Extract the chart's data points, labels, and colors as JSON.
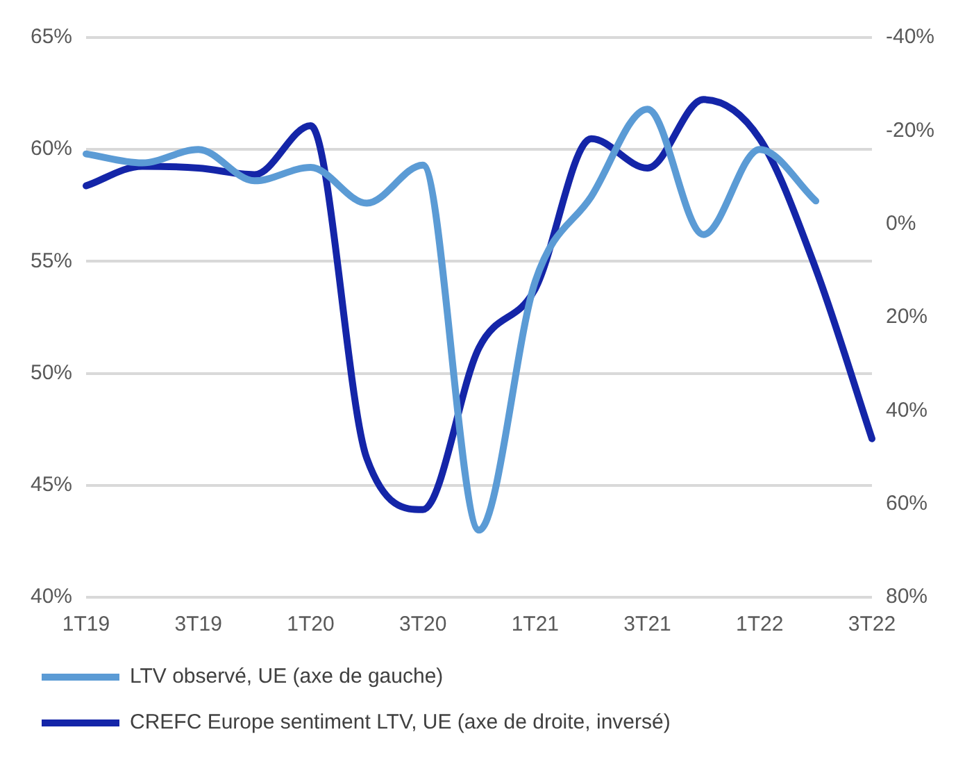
{
  "chart_data": {
    "type": "line",
    "categories": [
      "1T19",
      null,
      "3T19",
      null,
      "1T20",
      null,
      "3T20",
      null,
      "1T21",
      null,
      "3T21",
      null,
      "1T22",
      null,
      "3T22"
    ],
    "series": [
      {
        "name": "LTV observé, UE (axe de gauche)",
        "color": "#5b9bd5",
        "values": [
          59.8,
          59.4,
          60.0,
          58.6,
          59.2,
          57.6,
          59.3,
          43.0,
          54.1,
          57.9,
          61.8,
          56.2,
          60.0,
          57.7,
          null
        ]
      },
      {
        "name": "CREFC Europe sentiment LTV, UE (axe de droite, inversé)",
        "color": "#1425a8",
        "axis": "y2",
        "values": [
          -8.2,
          -12.4,
          -12.0,
          -10.6,
          -21.1,
          50.2,
          61.2,
          26.5,
          13.9,
          -18.3,
          -12.0,
          -26.7,
          -18.3,
          9.6,
          46.0
        ]
      }
    ],
    "ylim": [
      40,
      65
    ],
    "yticks": [
      {
        "value": 40,
        "label": "40%"
      },
      {
        "value": 45,
        "label": "45%"
      },
      {
        "value": 50,
        "label": "50%"
      },
      {
        "value": 55,
        "label": "55%"
      },
      {
        "value": 60,
        "label": "60%"
      },
      {
        "value": 65,
        "label": "65%"
      }
    ],
    "y2lim": [
      80,
      -40
    ],
    "y2ticks": [
      {
        "value": -40,
        "label": "-40%"
      },
      {
        "value": -20,
        "label": "-20%"
      },
      {
        "value": 0,
        "label": "0%"
      },
      {
        "value": 20,
        "label": "20%"
      },
      {
        "value": 40,
        "label": "40%"
      },
      {
        "value": 60,
        "label": "60%"
      },
      {
        "value": 80,
        "label": "80%"
      }
    ],
    "grid": "y",
    "legend": "bottom",
    "marker": "none",
    "line_style": "solid"
  }
}
